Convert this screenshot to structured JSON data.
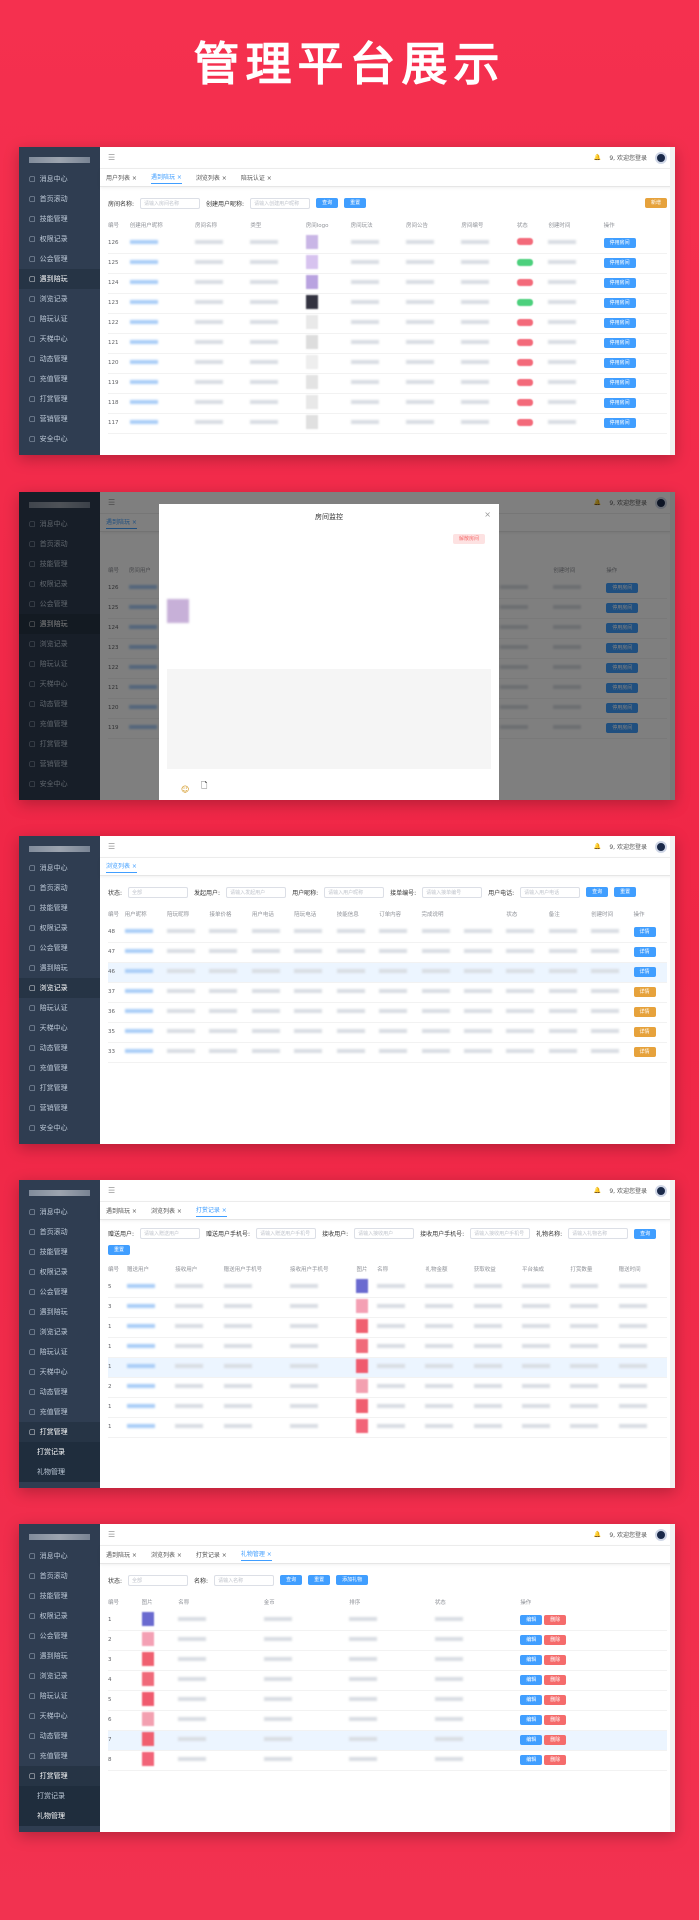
{
  "page_title": "管理平台展示",
  "colors": {
    "background": "#f23250",
    "sidebar": "#2f3d51",
    "primary": "#409eff",
    "warning": "#e6a23c",
    "danger": "#f56c6c"
  },
  "header": {
    "welcome": "9, 欢迎您登录",
    "menu_icon": "hamburger-icon",
    "bell_icon": "bell-icon"
  },
  "sidebar_default": [
    "消息中心",
    "首页滚动",
    "技能管理",
    "权限记录",
    "公会管理",
    "遇到陪玩",
    "浏览记录",
    "陪玩认证",
    "天梯中心",
    "动态管理",
    "充值管理",
    "打赏管理",
    "营销管理",
    "安全中心"
  ],
  "panels": [
    {
      "sidebar_active": "遇到陪玩",
      "tabs": [
        "用户列表",
        "遇到陪玩",
        "浏览列表",
        "陪玩认证"
      ],
      "active_tab": 1,
      "filters": [
        {
          "label": "房间名称:",
          "placeholder": "请输入房间名称"
        },
        {
          "label": "创建用户昵称:",
          "placeholder": "请输入创建用户昵称"
        }
      ],
      "buttons": [
        "查询",
        "重置"
      ],
      "extra_button": "新增",
      "columns": [
        "编号",
        "创建用户昵称",
        "房间名称",
        "类型",
        "房间logo",
        "房间玩法",
        "房间公告",
        "房间编号",
        "状态",
        "创建时间",
        "操作"
      ],
      "ids": [
        "126",
        "125",
        "124",
        "123",
        "122",
        "121",
        "120",
        "119",
        "118",
        "117"
      ],
      "status": [
        "off",
        "on",
        "off",
        "on",
        "off",
        "off",
        "off",
        "off",
        "off",
        "off"
      ],
      "row_action": "停用房间"
    },
    {
      "sidebar_active": "遇到陪玩",
      "tabs": [
        "遇到陪玩"
      ],
      "active_tab": 0,
      "modal": {
        "title": "房间监控",
        "action": "解散房间"
      },
      "columns": [
        "编号",
        "房间用户",
        "",
        "",
        "",
        "",
        "",
        "",
        "",
        "创建时间",
        "操作"
      ],
      "ids": [
        "126",
        "125",
        "124",
        "123",
        "122",
        "121",
        "120",
        "119"
      ],
      "row_action": "停用房间"
    },
    {
      "sidebar_active": "浏览记录",
      "tabs": [
        "浏览列表"
      ],
      "active_tab": 0,
      "filters": [
        {
          "label": "状态:",
          "placeholder": "全部"
        },
        {
          "label": "发起用户:",
          "placeholder": "请输入发起用户"
        },
        {
          "label": "用户昵称:",
          "placeholder": "请输入用户昵称"
        },
        {
          "label": "接单编号:",
          "placeholder": "请输入接单编号"
        },
        {
          "label": "用户电话:",
          "placeholder": "请输入用户电话"
        }
      ],
      "buttons": [
        "查询",
        "重置"
      ],
      "columns": [
        "编号",
        "用户昵称",
        "陪玩昵称",
        "接单价格",
        "用户电话",
        "陪玩电话",
        "技能信息",
        "订单内容",
        "完成说明",
        "",
        "状态",
        "备注",
        "创建时间",
        "操作"
      ],
      "ids": [
        "48",
        "47",
        "46",
        "37",
        "36",
        "35",
        "33"
      ],
      "row_action": "详情"
    },
    {
      "sidebar_active": "打赏管理",
      "sub_items": [
        "打赏记录",
        "礼物管理"
      ],
      "sub_active": 0,
      "tabs": [
        "遇到陪玩",
        "浏览列表",
        "打赏记录"
      ],
      "active_tab": 2,
      "filters": [
        {
          "label": "赠送用户:",
          "placeholder": "请输入赠送用户"
        },
        {
          "label": "赠送用户手机号:",
          "placeholder": "请输入赠送用户手机号"
        },
        {
          "label": "接收用户:",
          "placeholder": "请输入接收用户"
        },
        {
          "label": "接收用户手机号:",
          "placeholder": "请输入接收用户手机号"
        },
        {
          "label": "礼物名称:",
          "placeholder": "请输入礼物名称"
        }
      ],
      "buttons": [
        "查询",
        "重置"
      ],
      "columns": [
        "编号",
        "赠送用户",
        "接收用户",
        "赠送用户手机号",
        "接收用户手机号",
        "图片",
        "名称",
        "礼物金额",
        "获取收益",
        "平台抽成",
        "打赏数量",
        "赠送时间"
      ],
      "ids": [
        "5",
        "3",
        "1",
        "1",
        "1",
        "2",
        "1",
        "1"
      ]
    },
    {
      "sidebar_active": "打赏管理",
      "sub_items": [
        "打赏记录",
        "礼物管理"
      ],
      "sub_active": 1,
      "tabs": [
        "遇到陪玩",
        "浏览列表",
        "打赏记录",
        "礼物管理"
      ],
      "active_tab": 3,
      "filters": [
        {
          "label": "状态:",
          "placeholder": "全部"
        },
        {
          "label": "名称:",
          "placeholder": "请输入名称"
        }
      ],
      "buttons": [
        "查询",
        "重置",
        "添加礼物"
      ],
      "columns": [
        "编号",
        "图片",
        "名称",
        "金币",
        "排序",
        "状态",
        "操作"
      ],
      "ids": [
        "1",
        "2",
        "3",
        "4",
        "5",
        "6",
        "7",
        "8"
      ],
      "row_actions": [
        "编辑",
        "删除"
      ]
    }
  ]
}
